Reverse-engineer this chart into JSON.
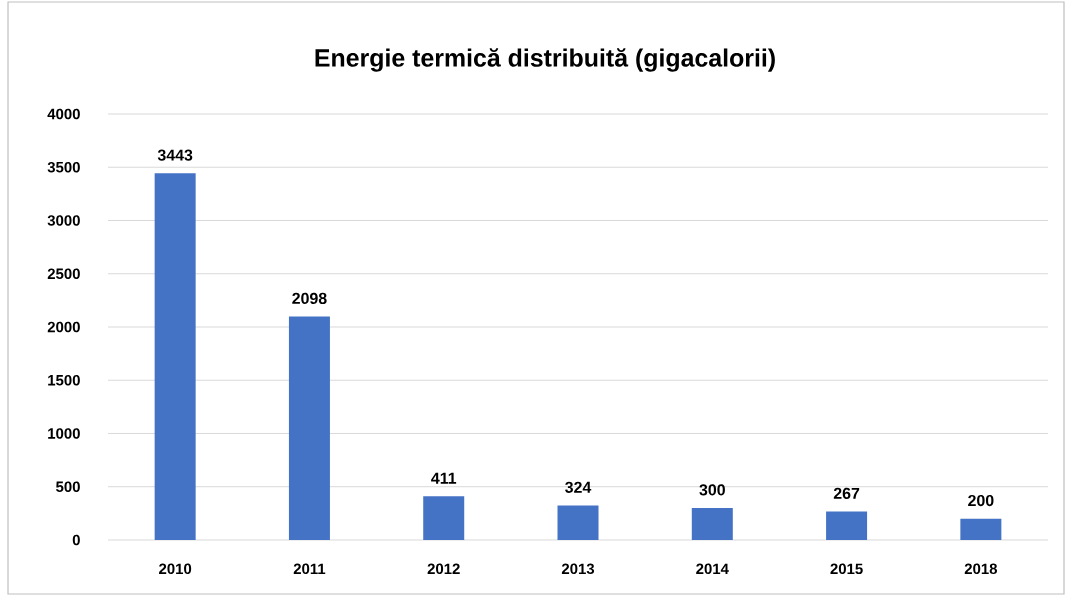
{
  "chart_data": {
    "type": "bar",
    "title": "Energie termică distribuită (gigacalorii)",
    "categories": [
      "2010",
      "2011",
      "2012",
      "2013",
      "2014",
      "2015",
      "2018"
    ],
    "values": [
      3443,
      2098,
      411,
      324,
      300,
      267,
      200
    ],
    "color": "#4472c4",
    "ylim": [
      0,
      4000
    ],
    "yticks": [
      0,
      500,
      1000,
      1500,
      2000,
      2500,
      3000,
      3500,
      4000
    ],
    "grid": "y",
    "data_labels": true
  }
}
